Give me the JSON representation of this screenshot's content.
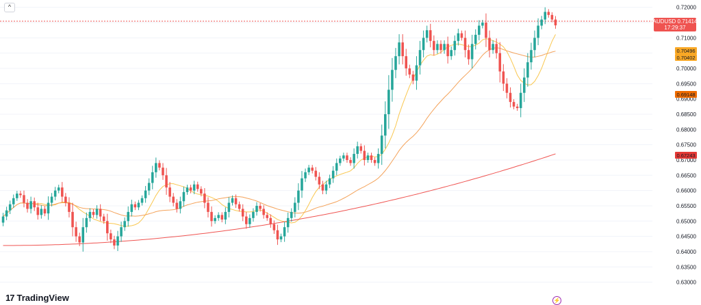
{
  "ui": {
    "collapse_glyph": "^",
    "logo_mark": "17",
    "logo_text": "TradingView",
    "flash_glyph": "⚡"
  },
  "chart_data": {
    "type": "candlestick",
    "symbol": "AUDUSD",
    "last_price": "0.71414",
    "countdown": "17:29:37",
    "ylim": [
      0.627,
      0.7215
    ],
    "y_ticks": [
      "0.72000",
      "0.71500",
      "0.71000",
      "0.70500",
      "0.70000",
      "0.69500",
      "0.69000",
      "0.68500",
      "0.68000",
      "0.67500",
      "0.67000",
      "0.66500",
      "0.66000",
      "0.65500",
      "0.65000",
      "0.64500",
      "0.64000",
      "0.63500",
      "0.63000"
    ],
    "ma_labels": [
      {
        "value": "0.70496",
        "color": "#f9a825"
      },
      {
        "value": "0.70402",
        "color": "#f9a825"
      },
      {
        "value": "0.69148",
        "color": "#f57c00"
      },
      {
        "value": "0.67243",
        "color": "#e53935"
      }
    ],
    "colors": {
      "up": "#26a69a",
      "down": "#ef5350",
      "ma_fast": "#f9c74f",
      "ma_mid": "#f4a259",
      "ma_slow": "#ef5350"
    },
    "closes": [
      0.6515,
      0.6535,
      0.6555,
      0.6575,
      0.659,
      0.6585,
      0.656,
      0.654,
      0.6565,
      0.6545,
      0.652,
      0.654,
      0.6525,
      0.656,
      0.658,
      0.66,
      0.661,
      0.658,
      0.656,
      0.653,
      0.648,
      0.645,
      0.643,
      0.648,
      0.651,
      0.653,
      0.652,
      0.654,
      0.6515,
      0.65,
      0.646,
      0.644,
      0.642,
      0.645,
      0.648,
      0.65,
      0.653,
      0.6555,
      0.6545,
      0.656,
      0.6575,
      0.66,
      0.6625,
      0.666,
      0.669,
      0.6675,
      0.665,
      0.661,
      0.658,
      0.656,
      0.654,
      0.6565,
      0.6595,
      0.661,
      0.66,
      0.662,
      0.6605,
      0.659,
      0.656,
      0.653,
      0.65,
      0.651,
      0.652,
      0.6505,
      0.653,
      0.656,
      0.6575,
      0.6555,
      0.654,
      0.6515,
      0.649,
      0.651,
      0.653,
      0.655,
      0.654,
      0.652,
      0.651,
      0.649,
      0.647,
      0.644,
      0.645,
      0.648,
      0.651,
      0.653,
      0.656,
      0.66,
      0.664,
      0.666,
      0.6675,
      0.6665,
      0.6645,
      0.662,
      0.66,
      0.662,
      0.664,
      0.6665,
      0.669,
      0.6705,
      0.6715,
      0.67,
      0.669,
      0.672,
      0.6745,
      0.673,
      0.67,
      0.6715,
      0.67,
      0.669,
      0.672,
      0.678,
      0.685,
      0.693,
      0.6995,
      0.704,
      0.7085,
      0.704,
      0.7,
      0.698,
      0.696,
      0.701,
      0.706,
      0.71,
      0.7125,
      0.709,
      0.706,
      0.708,
      0.706,
      0.708,
      0.704,
      0.706,
      0.709,
      0.7115,
      0.71,
      0.706,
      0.703,
      0.708,
      0.711,
      0.714,
      0.715,
      0.71,
      0.706,
      0.708,
      0.705,
      0.699,
      0.695,
      0.692,
      0.689,
      0.6875,
      0.687,
      0.692,
      0.697,
      0.702,
      0.706,
      0.71,
      0.714,
      0.716,
      0.7185,
      0.7175,
      0.716,
      0.7141
    ]
  }
}
